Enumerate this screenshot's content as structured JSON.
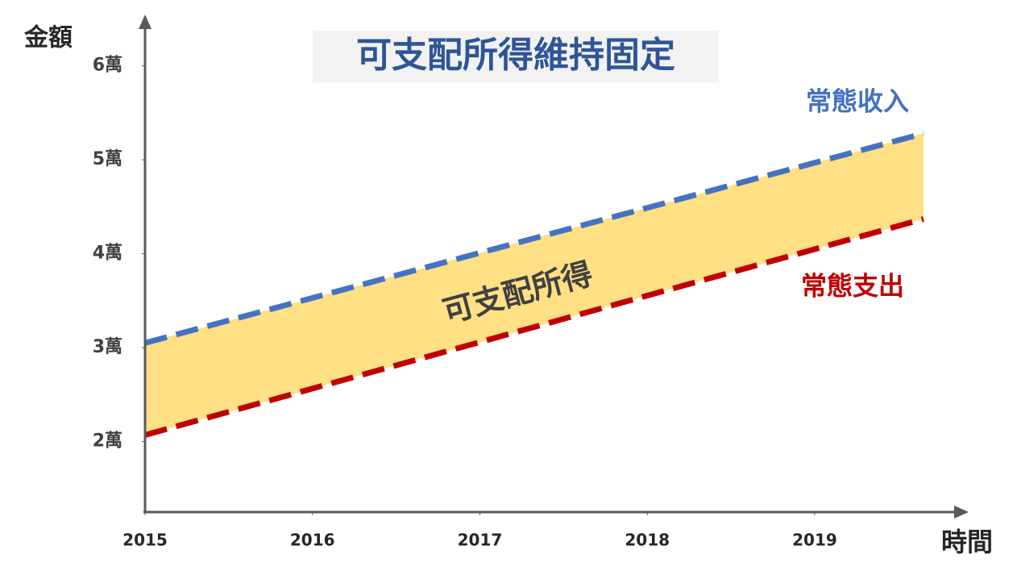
{
  "chart_data": {
    "type": "line",
    "title": "可支配所得維持固定",
    "y_label": "金額",
    "x_label": "時間",
    "annotation": "可支配所得",
    "x": [
      2015,
      2019.65
    ],
    "series": [
      {
        "name": "常態收入",
        "color": "#4472c4",
        "values": [
          30500,
          52800
        ]
      },
      {
        "name": "常態支出",
        "color": "#c00000",
        "values": [
          20700,
          43700
        ]
      }
    ],
    "band_color": "#ffe085",
    "xlim": [
      2015,
      2019.91
    ],
    "xticks": [
      2015,
      2016,
      2017,
      2018,
      2019
    ],
    "ylim": [
      12500,
      65000
    ],
    "yticks": [
      {
        "value": 20000,
        "label": "2萬"
      },
      {
        "value": 30000,
        "label": "3萬"
      },
      {
        "value": 40000,
        "label": "4萬"
      },
      {
        "value": 50000,
        "label": "5萬"
      },
      {
        "value": 60000,
        "label": "6萬"
      }
    ],
    "dashed": true
  }
}
